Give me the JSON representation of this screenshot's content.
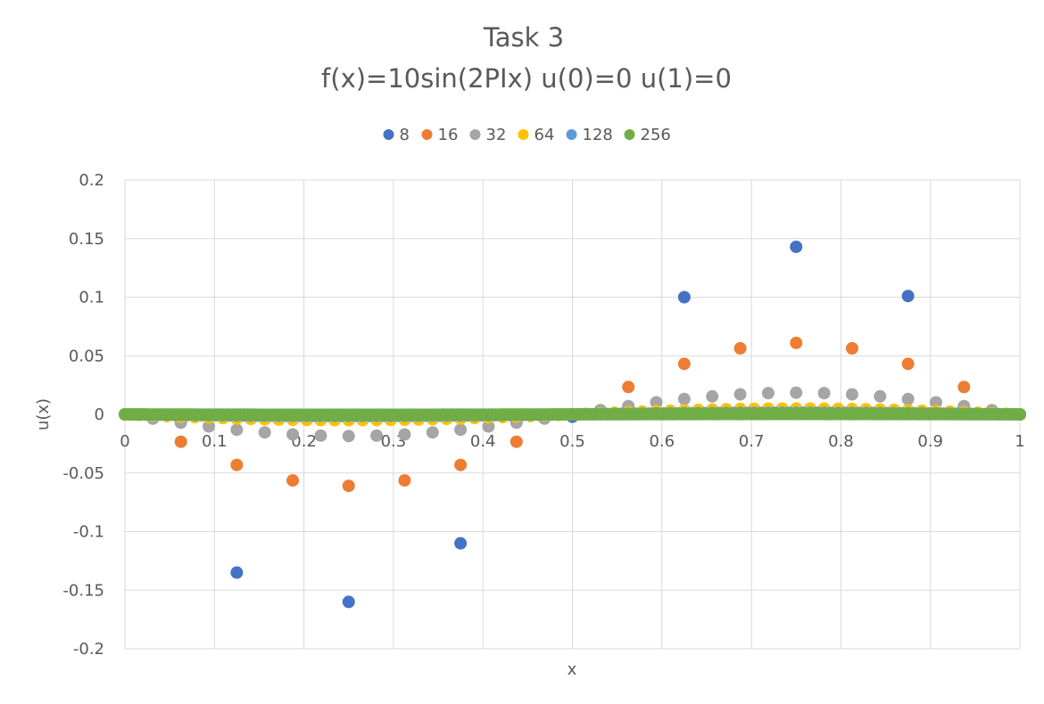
{
  "chart_data": {
    "type": "scatter",
    "title": "Task 3",
    "subtitle": "f(x)=10sin(2PIx) u(0)=0 u(1)=0",
    "xlabel": "x",
    "ylabel": "u(x)",
    "xlim": [
      0,
      1
    ],
    "ylim": [
      -0.2,
      0.2
    ],
    "x_ticks": [
      "0",
      "0.1",
      "0.2",
      "0.3",
      "0.4",
      "0.5",
      "0.6",
      "0.7",
      "0.8",
      "0.9",
      "1"
    ],
    "y_ticks": [
      "0.2",
      "0.15",
      "0.1",
      "0.05",
      "0",
      "-0.05",
      "-0.1",
      "-0.15",
      "-0.2"
    ],
    "grid": true,
    "legend_position": "top",
    "series": [
      {
        "name": "8",
        "color": "#4472c4",
        "n": 8,
        "amplitude": 0.16
      },
      {
        "name": "16",
        "color": "#ed7d31",
        "n": 16,
        "amplitude": 0.061
      },
      {
        "name": "32",
        "color": "#a5a5a5",
        "n": 32,
        "amplitude": 0.0185
      },
      {
        "name": "64",
        "color": "#ffc000",
        "n": 64,
        "amplitude": 0.005
      },
      {
        "name": "128",
        "color": "#5b9bd5",
        "n": 128,
        "amplitude": 0.0013
      },
      {
        "name": "256",
        "color": "#70ad47",
        "n": 256,
        "amplitude": 0.0003
      }
    ],
    "series_8_points": [
      [
        0,
        0
      ],
      [
        0.125,
        -0.135
      ],
      [
        0.25,
        -0.16
      ],
      [
        0.375,
        -0.11
      ],
      [
        0.5,
        -0.002
      ],
      [
        0.625,
        0.1
      ],
      [
        0.75,
        0.143
      ],
      [
        0.875,
        0.101
      ],
      [
        1,
        0
      ]
    ]
  }
}
